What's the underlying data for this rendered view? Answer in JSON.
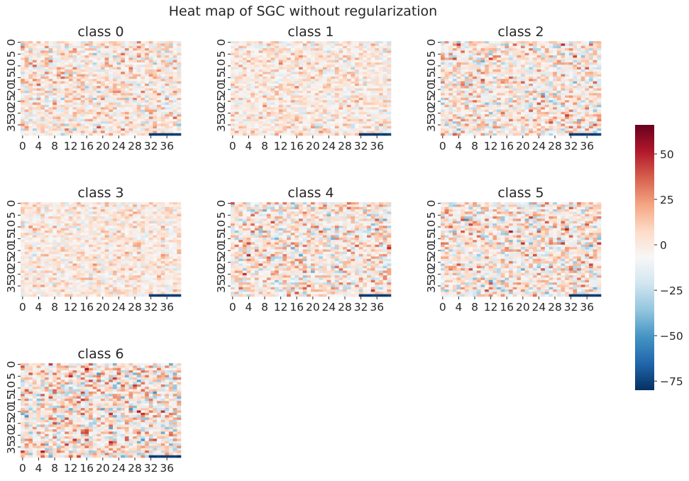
{
  "chart_data": {
    "type": "heatmap",
    "title": "Heat map of SGC without regularization",
    "colormap": "RdBu_r",
    "grid": false,
    "rows": 40,
    "cols": 40,
    "xticks": [
      "0",
      "4",
      "8",
      "12",
      "16",
      "20",
      "24",
      "28",
      "32",
      "36"
    ],
    "yticks": [
      "0",
      "5",
      "10",
      "15",
      "20",
      "25",
      "30",
      "35"
    ],
    "panels": [
      {
        "title": "class 0",
        "std": 14
      },
      {
        "title": "class 1",
        "std": 11
      },
      {
        "title": "class 2",
        "std": 16
      },
      {
        "title": "class 3",
        "std": 10
      },
      {
        "title": "class 4",
        "std": 17
      },
      {
        "title": "class 5",
        "std": 17
      },
      {
        "title": "class 6",
        "std": 19
      }
    ],
    "colorbar": {
      "vmin": -80,
      "vmax": 66,
      "ticks": [
        50,
        25,
        0,
        -25,
        -50,
        -75
      ],
      "tick_labels": [
        "50",
        "25",
        "0",
        "−25",
        "−50",
        "−75"
      ],
      "placement": "right"
    },
    "notes": "Cell values are noise-like; last row columns 32-39 show strong negative values (~-75) in every panel."
  }
}
